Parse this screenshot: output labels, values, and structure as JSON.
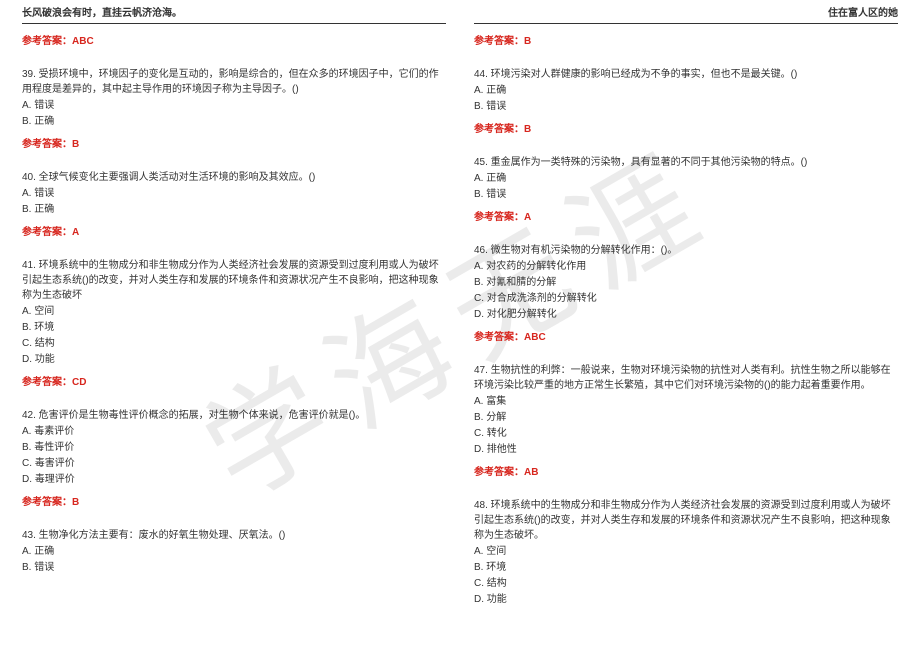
{
  "header": {
    "left": "长风破浪会有时，直挂云帆济沧海。",
    "right": "住在富人区的她"
  },
  "watermark": "学海无涯",
  "answer_label_prefix": "参考答案：",
  "left_top_answer": "ABC",
  "right_top_answer": "B",
  "left_questions": [
    {
      "num": "39.",
      "text": "受损环境中，环境因子的变化是互动的，影响是综合的，但在众多的环境因子中，它们的作用程度是差异的，其中起主导作用的环境因子称为主导因子。()",
      "opts": [
        "A. 错误",
        "B. 正确"
      ],
      "ans": "B"
    },
    {
      "num": "40.",
      "text": "全球气候变化主要强调人类活动对生活环境的影响及其效应。()",
      "opts": [
        "A. 错误",
        "B. 正确"
      ],
      "ans": "A"
    },
    {
      "num": "41.",
      "text": "环境系统中的生物成分和非生物成分作为人类经济社会发展的资源受到过度利用或人为破坏引起生态系统()的改变，并对人类生存和发展的环境条件和资源状况产生不良影响，把这种现象称为生态破坏",
      "opts": [
        "A. 空间",
        "B. 环境",
        "C. 结构",
        "D. 功能"
      ],
      "ans": "CD"
    },
    {
      "num": "42.",
      "text": "危害评价是生物毒性评价概念的拓展，对生物个体来说，危害评价就是()。",
      "opts": [
        "A. 毒素评价",
        "B. 毒性评价",
        "C. 毒害评价",
        "D. 毒理评价"
      ],
      "ans": "B"
    },
    {
      "num": "43.",
      "text": "生物净化方法主要有：废水的好氧生物处理、厌氧法。()",
      "opts": [
        "A. 正确",
        "B. 错误"
      ],
      "ans": null
    }
  ],
  "right_questions": [
    {
      "num": "44.",
      "text": "环境污染对人群健康的影响已经成为不争的事实，但也不是最关键。()",
      "opts": [
        "A. 正确",
        "B. 错误"
      ],
      "ans": "B"
    },
    {
      "num": "45.",
      "text": "重金属作为一类特殊的污染物，具有显著的不同于其他污染物的特点。()",
      "opts": [
        "A. 正确",
        "B. 错误"
      ],
      "ans": "A"
    },
    {
      "num": "46.",
      "text": "微生物对有机污染物的分解转化作用：()。",
      "opts": [
        "A. 对农药的分解转化作用",
        "B. 对氰和腈的分解",
        "C. 对合成洗涤剂的分解转化",
        "D. 对化肥分解转化"
      ],
      "ans": "ABC"
    },
    {
      "num": "47.",
      "text": "生物抗性的利弊：一般说来，生物对环境污染物的抗性对人类有利。抗性生物之所以能够在环境污染比较严重的地方正常生长繁殖，其中它们对环境污染物的()的能力起着重要作用。",
      "opts": [
        "A. 富集",
        "B. 分解",
        "C. 转化",
        "D. 排他性"
      ],
      "ans": "AB"
    },
    {
      "num": "48.",
      "text": "环境系统中的生物成分和非生物成分作为人类经济社会发展的资源受到过度利用或人为破坏引起生态系统()的改变，并对人类生存和发展的环境条件和资源状况产生不良影响，把这种现象称为生态破坏。",
      "opts": [
        "A. 空间",
        "B. 环境",
        "C. 结构",
        "D. 功能"
      ],
      "ans": null
    }
  ]
}
